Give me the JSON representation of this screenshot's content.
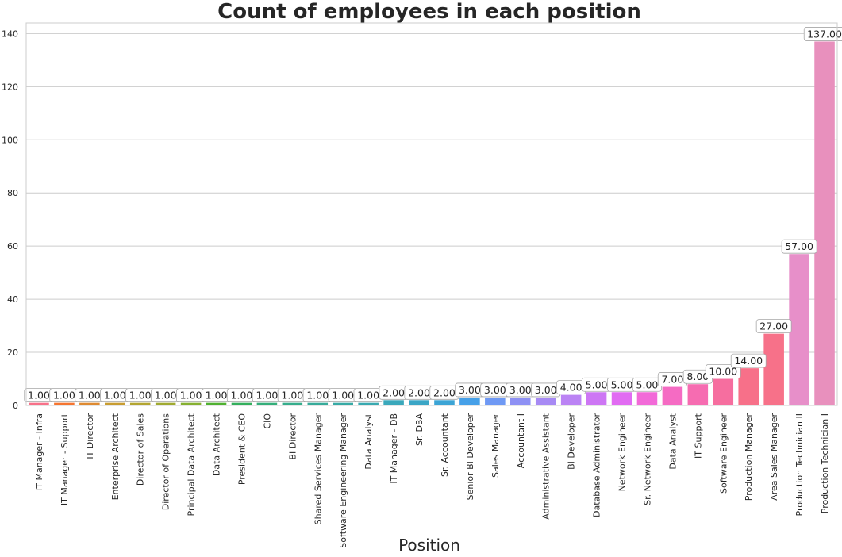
{
  "chart_data": {
    "type": "bar",
    "title": "Count of employees in each position",
    "xlabel": "Position",
    "ylabel": "",
    "ylim": [
      0,
      144
    ],
    "yticks": [
      0,
      20,
      40,
      60,
      80,
      100,
      120,
      140
    ],
    "grid": "horizontal",
    "categories": [
      "IT Manager - Infra",
      "IT Manager - Support",
      "IT Director",
      "Enterprise Architect",
      "Director of Sales",
      "Director of Operations",
      "Principal Data Architect",
      "Data Architect",
      "President & CEO",
      "CIO",
      "BI Director",
      "Shared Services Manager",
      "Software Engineering Manager",
      "Data Analyst",
      "IT Manager - DB",
      "Sr. DBA",
      "Sr. Accountant",
      "Senior BI Developer",
      "Sales Manager",
      "Accountant I",
      "Administrative Assistant",
      "BI Developer",
      "Database Administrator",
      "Network Engineer",
      "Sr. Network Engineer",
      "Data Analyst",
      "IT Support",
      "Software Engineer",
      "Production Manager",
      "Area Sales Manager",
      "Production Technician II",
      "Production Technician I"
    ],
    "values": [
      1,
      1,
      1,
      1,
      1,
      1,
      1,
      1,
      1,
      1,
      1,
      1,
      1,
      1,
      2,
      2,
      2,
      3,
      3,
      3,
      3,
      4,
      5,
      5,
      5,
      7,
      8,
      10,
      14,
      27,
      57,
      137
    ],
    "data_labels": [
      "1.00",
      "1.00",
      "1.00",
      "1.00",
      "1.00",
      "1.00",
      "1.00",
      "1.00",
      "1.00",
      "1.00",
      "1.00",
      "1.00",
      "1.00",
      "1.00",
      "2.00",
      "2.00",
      "2.00",
      "3.00",
      "3.00",
      "3.00",
      "3.00",
      "4.00",
      "5.00",
      "5.00",
      "5.00",
      "7.00",
      "8.00",
      "10.00",
      "14.00",
      "27.00",
      "57.00",
      "137.00"
    ],
    "colors": [
      "#f77189",
      "#f57530",
      "#de8a31",
      "#c89d31",
      "#b3a531",
      "#a0aa31",
      "#86b031",
      "#50b131",
      "#34af5d",
      "#35ae7a",
      "#36ad8c",
      "#37ab9a",
      "#38aaa5",
      "#39a9b0",
      "#3aa8bb",
      "#3ba6c6",
      "#3ca4d5",
      "#46a0e8",
      "#6f99f4",
      "#8e91f4",
      "#a78af4",
      "#bb83f4",
      "#cd76f4",
      "#e16bf2",
      "#f26ad8",
      "#f56bc3",
      "#f66cb1",
      "#f66e9f",
      "#f77089",
      "#f77189",
      "#e78fc9",
      "#e890bd"
    ]
  }
}
